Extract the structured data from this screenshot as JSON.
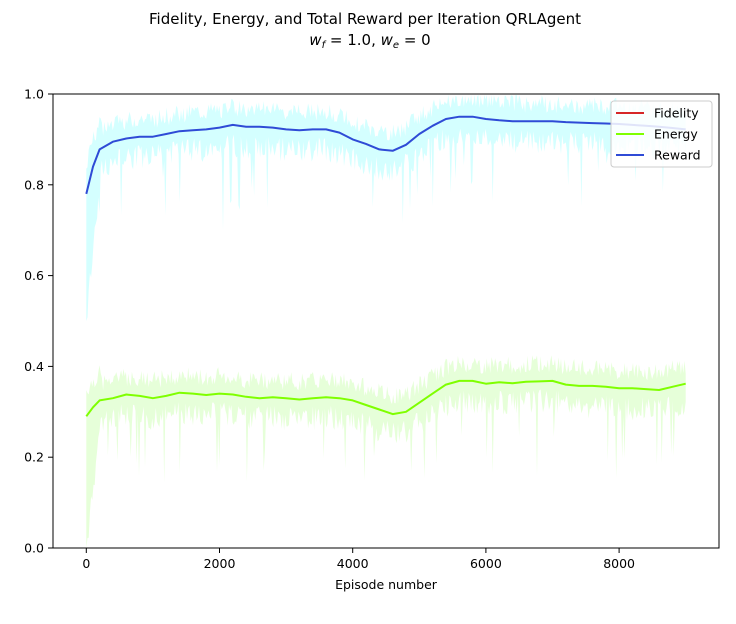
{
  "chart_data": {
    "type": "line",
    "title": "Fidelity, Energy, and Total Reward per Iteration QRLAgent",
    "subtitle": "w_f = 1.0, w_e = 0",
    "xlabel": "Episode number",
    "ylabel": "",
    "xlim": [
      -500,
      9500
    ],
    "ylim": [
      0,
      1.0
    ],
    "x_ticks": [
      0,
      2000,
      4000,
      6000,
      8000
    ],
    "y_ticks": [
      0.0,
      0.2,
      0.4,
      0.6,
      0.8,
      1.0
    ],
    "x_tick_labels": [
      "0",
      "2000",
      "4000",
      "6000",
      "8000"
    ],
    "y_tick_labels": [
      "0.0",
      "0.2",
      "0.4",
      "0.6",
      "0.8",
      "1.0"
    ],
    "legend_position": "top-right",
    "grid": false,
    "series": [
      {
        "name": "Fidelity",
        "color": "#d62728",
        "x": [],
        "y": []
      },
      {
        "name": "Energy",
        "color": "#7fff00",
        "band_color": "#e6ffd9",
        "x": [
          0,
          100,
          200,
          400,
          600,
          800,
          1000,
          1200,
          1400,
          1600,
          1800,
          2000,
          2200,
          2400,
          2600,
          2800,
          3000,
          3200,
          3400,
          3600,
          3800,
          4000,
          4200,
          4400,
          4600,
          4800,
          5000,
          5200,
          5400,
          5600,
          5800,
          6000,
          6200,
          6400,
          6600,
          6800,
          7000,
          7200,
          7400,
          7600,
          7800,
          8000,
          8200,
          8400,
          8600,
          8800,
          9000
        ],
        "y": [
          0.29,
          0.31,
          0.325,
          0.33,
          0.338,
          0.335,
          0.33,
          0.335,
          0.342,
          0.34,
          0.337,
          0.34,
          0.338,
          0.333,
          0.33,
          0.332,
          0.33,
          0.327,
          0.33,
          0.332,
          0.33,
          0.325,
          0.315,
          0.305,
          0.295,
          0.3,
          0.32,
          0.34,
          0.36,
          0.368,
          0.368,
          0.362,
          0.365,
          0.363,
          0.366,
          0.367,
          0.368,
          0.36,
          0.357,
          0.357,
          0.355,
          0.352,
          0.352,
          0.35,
          0.348,
          0.355,
          0.362
        ]
      },
      {
        "name": "Reward",
        "color": "#2f4bd6",
        "band_color": "#d4ffff",
        "x": [
          0,
          100,
          200,
          400,
          600,
          800,
          1000,
          1200,
          1400,
          1600,
          1800,
          2000,
          2200,
          2400,
          2600,
          2800,
          3000,
          3200,
          3400,
          3600,
          3800,
          4000,
          4200,
          4400,
          4600,
          4800,
          5000,
          5200,
          5400,
          5600,
          5800,
          6000,
          6200,
          6400,
          6600,
          6800,
          7000,
          7200,
          7400,
          7600,
          7800,
          8000,
          8200,
          8400,
          8600,
          8800,
          9000
        ],
        "y": [
          0.78,
          0.84,
          0.878,
          0.895,
          0.902,
          0.906,
          0.906,
          0.912,
          0.918,
          0.92,
          0.922,
          0.926,
          0.932,
          0.928,
          0.928,
          0.926,
          0.922,
          0.92,
          0.922,
          0.922,
          0.915,
          0.9,
          0.89,
          0.878,
          0.875,
          0.888,
          0.912,
          0.93,
          0.945,
          0.95,
          0.95,
          0.945,
          0.942,
          0.94,
          0.94,
          0.94,
          0.94,
          0.938,
          0.937,
          0.936,
          0.935,
          0.934,
          0.932,
          0.93,
          0.928,
          0.925,
          0.922
        ]
      }
    ]
  }
}
